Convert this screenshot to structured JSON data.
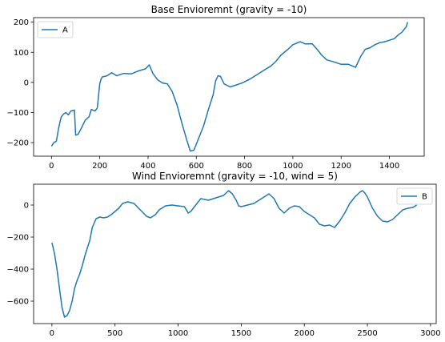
{
  "chart_data": [
    {
      "type": "line",
      "title": "Base Envioremnt (gravity = -10)",
      "xlabel": "",
      "ylabel": "",
      "xlim": [
        -74,
        1544
      ],
      "ylim": [
        -245,
        215
      ],
      "xticks": [
        0,
        200,
        400,
        600,
        800,
        1000,
        1200,
        1400
      ],
      "yticks": [
        -200,
        -100,
        0,
        100,
        200
      ],
      "legend": "top-left",
      "grid": false,
      "color": "#1f77b4",
      "series": [
        {
          "name": "A",
          "points": [
            [
              0,
              -212
            ],
            [
              10,
              -200
            ],
            [
              20,
              -195
            ],
            [
              30,
              -150
            ],
            [
              40,
              -115
            ],
            [
              50,
              -105
            ],
            [
              60,
              -100
            ],
            [
              70,
              -108
            ],
            [
              80,
              -95
            ],
            [
              95,
              -92
            ],
            [
              100,
              -175
            ],
            [
              110,
              -173
            ],
            [
              125,
              -150
            ],
            [
              140,
              -125
            ],
            [
              155,
              -115
            ],
            [
              165,
              -90
            ],
            [
              180,
              -95
            ],
            [
              190,
              -85
            ],
            [
              200,
              -5
            ],
            [
              205,
              10
            ],
            [
              210,
              18
            ],
            [
              230,
              22
            ],
            [
              250,
              32
            ],
            [
              270,
              22
            ],
            [
              300,
              30
            ],
            [
              330,
              28
            ],
            [
              360,
              38
            ],
            [
              390,
              45
            ],
            [
              405,
              58
            ],
            [
              420,
              30
            ],
            [
              440,
              8
            ],
            [
              460,
              -2
            ],
            [
              480,
              -5
            ],
            [
              500,
              -30
            ],
            [
              520,
              -75
            ],
            [
              540,
              -135
            ],
            [
              560,
              -190
            ],
            [
              575,
              -228
            ],
            [
              590,
              -225
            ],
            [
              610,
              -185
            ],
            [
              630,
              -145
            ],
            [
              650,
              -90
            ],
            [
              670,
              -40
            ],
            [
              680,
              5
            ],
            [
              690,
              22
            ],
            [
              700,
              20
            ],
            [
              715,
              -5
            ],
            [
              740,
              -15
            ],
            [
              760,
              -10
            ],
            [
              790,
              -2
            ],
            [
              820,
              10
            ],
            [
              850,
              25
            ],
            [
              880,
              40
            ],
            [
              910,
              55
            ],
            [
              930,
              70
            ],
            [
              950,
              90
            ],
            [
              980,
              110
            ],
            [
              1000,
              125
            ],
            [
              1030,
              135
            ],
            [
              1050,
              128
            ],
            [
              1080,
              128
            ],
            [
              1100,
              110
            ],
            [
              1120,
              90
            ],
            [
              1140,
              75
            ],
            [
              1170,
              68
            ],
            [
              1200,
              60
            ],
            [
              1230,
              60
            ],
            [
              1260,
              50
            ],
            [
              1280,
              85
            ],
            [
              1300,
              110
            ],
            [
              1320,
              115
            ],
            [
              1340,
              125
            ],
            [
              1360,
              132
            ],
            [
              1380,
              135
            ],
            [
              1400,
              140
            ],
            [
              1420,
              145
            ],
            [
              1440,
              160
            ],
            [
              1450,
              165
            ],
            [
              1460,
              175
            ],
            [
              1470,
              185
            ],
            [
              1475,
              200
            ]
          ]
        }
      ]
    },
    {
      "type": "line",
      "title": "Wind Envioremnt  (gravity = -10, wind = 5)",
      "xlabel": "",
      "ylabel": "",
      "xlim": [
        -145,
        3045
      ],
      "ylim": [
        -740,
        130
      ],
      "xticks": [
        0,
        500,
        1000,
        1500,
        2000,
        2500,
        3000
      ],
      "yticks": [
        -600,
        -400,
        -200,
        0
      ],
      "legend": "top-right",
      "grid": false,
      "color": "#1f77b4",
      "series": [
        {
          "name": "B",
          "points": [
            [
              0,
              -235
            ],
            [
              20,
              -300
            ],
            [
              40,
              -400
            ],
            [
              60,
              -520
            ],
            [
              80,
              -640
            ],
            [
              100,
              -700
            ],
            [
              120,
              -690
            ],
            [
              140,
              -660
            ],
            [
              160,
              -600
            ],
            [
              180,
              -520
            ],
            [
              200,
              -470
            ],
            [
              220,
              -430
            ],
            [
              240,
              -380
            ],
            [
              260,
              -320
            ],
            [
              280,
              -270
            ],
            [
              300,
              -220
            ],
            [
              320,
              -140
            ],
            [
              350,
              -85
            ],
            [
              380,
              -75
            ],
            [
              410,
              -80
            ],
            [
              440,
              -75
            ],
            [
              470,
              -60
            ],
            [
              500,
              -40
            ],
            [
              530,
              -20
            ],
            [
              560,
              10
            ],
            [
              600,
              20
            ],
            [
              650,
              10
            ],
            [
              700,
              -30
            ],
            [
              750,
              -70
            ],
            [
              780,
              -80
            ],
            [
              820,
              -60
            ],
            [
              850,
              -30
            ],
            [
              900,
              -5
            ],
            [
              950,
              0
            ],
            [
              1000,
              -5
            ],
            [
              1050,
              -10
            ],
            [
              1080,
              -50
            ],
            [
              1100,
              -40
            ],
            [
              1140,
              0
            ],
            [
              1180,
              40
            ],
            [
              1240,
              30
            ],
            [
              1280,
              40
            ],
            [
              1320,
              50
            ],
            [
              1360,
              60
            ],
            [
              1400,
              90
            ],
            [
              1430,
              70
            ],
            [
              1460,
              30
            ],
            [
              1480,
              -5
            ],
            [
              1500,
              -10
            ],
            [
              1550,
              0
            ],
            [
              1600,
              10
            ],
            [
              1640,
              30
            ],
            [
              1680,
              50
            ],
            [
              1720,
              70
            ],
            [
              1760,
              40
            ],
            [
              1800,
              -20
            ],
            [
              1840,
              -50
            ],
            [
              1880,
              -20
            ],
            [
              1920,
              -5
            ],
            [
              1960,
              -10
            ],
            [
              2000,
              -40
            ],
            [
              2040,
              -60
            ],
            [
              2080,
              -80
            ],
            [
              2120,
              -120
            ],
            [
              2160,
              -130
            ],
            [
              2200,
              -125
            ],
            [
              2240,
              -140
            ],
            [
              2280,
              -100
            ],
            [
              2320,
              -50
            ],
            [
              2360,
              10
            ],
            [
              2400,
              50
            ],
            [
              2440,
              80
            ],
            [
              2460,
              90
            ],
            [
              2480,
              75
            ],
            [
              2500,
              50
            ],
            [
              2540,
              -20
            ],
            [
              2580,
              -70
            ],
            [
              2620,
              -100
            ],
            [
              2660,
              -105
            ],
            [
              2700,
              -90
            ],
            [
              2740,
              -60
            ],
            [
              2780,
              -30
            ],
            [
              2820,
              -20
            ],
            [
              2860,
              -15
            ],
            [
              2890,
              0
            ]
          ]
        }
      ]
    }
  ]
}
